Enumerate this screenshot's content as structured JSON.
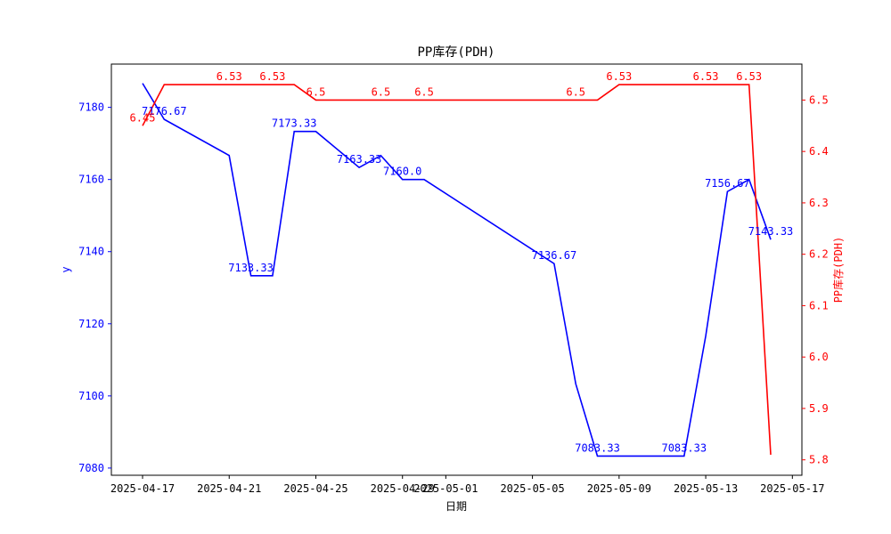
{
  "chart_data": {
    "type": "line",
    "title": "PP库存(PDH)",
    "xlabel": "日期",
    "ylabel_left": "y",
    "ylabel_right": "PP库存(PDH)",
    "x_ticks": [
      "2025-04-17",
      "2025-04-21",
      "2025-04-25",
      "2025-04-29",
      "2025-05-01",
      "2025-05-05",
      "2025-05-09",
      "2025-05-13",
      "2025-05-17"
    ],
    "y_left_ticks": [
      "7080",
      "7100",
      "7120",
      "7140",
      "7160",
      "7180"
    ],
    "y_right_ticks": [
      "5.8",
      "5.9",
      "6.0",
      "6.1",
      "6.2",
      "6.3",
      "6.4",
      "6.5"
    ],
    "y_left_lim": [
      7078,
      7192
    ],
    "y_right_lim": [
      5.77,
      6.57
    ],
    "x_lim_days": [
      "2025-04-16",
      "2025-05-17"
    ],
    "series": [
      {
        "axis": "left",
        "color": "#0000ff",
        "points": [
          [
            "2025-04-17",
            7186.67
          ],
          [
            "2025-04-18",
            7176.67
          ],
          [
            "2025-04-21",
            7166.67
          ],
          [
            "2025-04-22",
            7133.33
          ],
          [
            "2025-04-23",
            7133.33
          ],
          [
            "2025-04-24",
            7173.33
          ],
          [
            "2025-04-25",
            7173.33
          ],
          [
            "2025-04-27",
            7163.33
          ],
          [
            "2025-04-28",
            7166.67
          ],
          [
            "2025-04-29",
            7160.0
          ],
          [
            "2025-04-30",
            7160.0
          ],
          [
            "2025-05-06",
            7136.67
          ],
          [
            "2025-05-07",
            7103.33
          ],
          [
            "2025-05-08",
            7083.33
          ],
          [
            "2025-05-12",
            7083.33
          ],
          [
            "2025-05-13",
            7116.67
          ],
          [
            "2025-05-14",
            7156.67
          ],
          [
            "2025-05-15",
            7160.0
          ],
          [
            "2025-05-16",
            7143.33
          ]
        ],
        "labels": [
          {
            "x": "2025-04-18",
            "text": "7176.67"
          },
          {
            "x": "2025-04-22",
            "text": "7133.33"
          },
          {
            "x": "2025-04-24",
            "text": "7173.33"
          },
          {
            "x": "2025-04-27",
            "text": "7163.33"
          },
          {
            "x": "2025-04-29",
            "text": "7160.0"
          },
          {
            "x": "2025-05-06",
            "text": "7136.67"
          },
          {
            "x": "2025-05-08",
            "text": "7083.33"
          },
          {
            "x": "2025-05-12",
            "text": "7083.33"
          },
          {
            "x": "2025-05-14",
            "text": "7156.67"
          },
          {
            "x": "2025-05-16",
            "text": "7143.33"
          }
        ]
      },
      {
        "axis": "right",
        "color": "#ff0000",
        "points": [
          [
            "2025-04-17",
            6.45
          ],
          [
            "2025-04-18",
            6.53
          ],
          [
            "2025-04-24",
            6.53
          ],
          [
            "2025-04-25",
            6.5
          ],
          [
            "2025-05-08",
            6.5
          ],
          [
            "2025-05-09",
            6.53
          ],
          [
            "2025-05-15",
            6.53
          ],
          [
            "2025-05-16",
            5.81
          ]
        ],
        "labels": [
          {
            "x": "2025-04-17",
            "text": "6.45"
          },
          {
            "x": "2025-04-21",
            "text": "6.53"
          },
          {
            "x": "2025-04-23",
            "text": "6.53"
          },
          {
            "x": "2025-04-25",
            "text": "6.5"
          },
          {
            "x": "2025-04-28",
            "text": "6.5"
          },
          {
            "x": "2025-04-30",
            "text": "6.5"
          },
          {
            "x": "2025-05-07",
            "text": "6.5"
          },
          {
            "x": "2025-05-09",
            "text": "6.53"
          },
          {
            "x": "2025-05-13",
            "text": "6.53"
          },
          {
            "x": "2025-05-15",
            "text": "6.53"
          }
        ]
      }
    ],
    "grid": false
  }
}
